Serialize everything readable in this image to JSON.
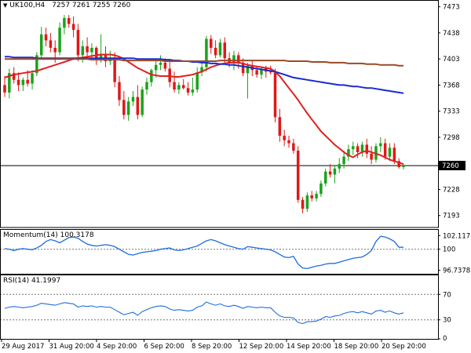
{
  "header": {
    "symbol": "UK100,H4",
    "ohlc": "7257 7261 7255 7260",
    "momentum_title": "Momentum(14) 100.3178",
    "rsi_title": "RSI(14) 41.1997"
  },
  "current_price_label": "7260",
  "chart_data": [
    {
      "type": "candlestick",
      "title": "UK100,H4 7257 7261 7255 7260",
      "ylim": [
        7178,
        7480
      ],
      "y_ticks": [
        "7473",
        "7438",
        "7403",
        "7368",
        "7333",
        "7298",
        "7260",
        "7228",
        "7193"
      ],
      "current_price": 7260,
      "x_labels": [
        "29 Aug 2017",
        "31 Aug 20:00",
        "4 Sep 20:00",
        "6 Sep 20:00",
        "8 Sep 20:00",
        "12 Sep 20:00",
        "14 Sep 20:00",
        "18 Sep 20:00",
        "20 Sep 20:00"
      ],
      "candles": [
        [
          7368,
          7380,
          7352,
          7358
        ],
        [
          7358,
          7390,
          7350,
          7384
        ],
        [
          7384,
          7392,
          7370,
          7375
        ],
        [
          7375,
          7385,
          7360,
          7368
        ],
        [
          7368,
          7378,
          7360,
          7375
        ],
        [
          7375,
          7388,
          7366,
          7370
        ],
        [
          7370,
          7388,
          7362,
          7384
        ],
        [
          7384,
          7412,
          7380,
          7408
        ],
        [
          7408,
          7446,
          7402,
          7436
        ],
        [
          7436,
          7445,
          7420,
          7428
        ],
        [
          7428,
          7438,
          7412,
          7418
        ],
        [
          7418,
          7428,
          7398,
          7412
        ],
        [
          7412,
          7452,
          7408,
          7445
        ],
        [
          7445,
          7462,
          7436,
          7458
        ],
        [
          7458,
          7462,
          7445,
          7450
        ],
        [
          7450,
          7460,
          7432,
          7442
        ],
        [
          7442,
          7450,
          7400,
          7408
        ],
        [
          7408,
          7428,
          7398,
          7420
        ],
        [
          7420,
          7432,
          7404,
          7412
        ],
        [
          7412,
          7424,
          7402,
          7418
        ],
        [
          7418,
          7420,
          7395,
          7402
        ],
        [
          7402,
          7436,
          7398,
          7410
        ],
        [
          7410,
          7420,
          7392,
          7400
        ],
        [
          7400,
          7414,
          7395,
          7405
        ],
        [
          7405,
          7412,
          7365,
          7372
        ],
        [
          7372,
          7380,
          7340,
          7348
        ],
        [
          7348,
          7360,
          7322,
          7328
        ],
        [
          7328,
          7352,
          7320,
          7346
        ],
        [
          7346,
          7360,
          7340,
          7352
        ],
        [
          7352,
          7368,
          7322,
          7328
        ],
        [
          7328,
          7366,
          7325,
          7362
        ],
        [
          7362,
          7378,
          7355,
          7372
        ],
        [
          7372,
          7390,
          7366,
          7388
        ],
        [
          7388,
          7402,
          7378,
          7395
        ],
        [
          7395,
          7408,
          7388,
          7398
        ],
        [
          7398,
          7404,
          7386,
          7390
        ],
        [
          7390,
          7400,
          7365,
          7372
        ],
        [
          7372,
          7386,
          7358,
          7362
        ],
        [
          7362,
          7372,
          7356,
          7368
        ],
        [
          7368,
          7376,
          7362,
          7364
        ],
        [
          7364,
          7372,
          7354,
          7358
        ],
        [
          7358,
          7378,
          7354,
          7362
        ],
        [
          7362,
          7392,
          7358,
          7385
        ],
        [
          7385,
          7398,
          7380,
          7392
        ],
        [
          7392,
          7434,
          7386,
          7430
        ],
        [
          7430,
          7435,
          7410,
          7418
        ],
        [
          7418,
          7428,
          7404,
          7408
        ],
        [
          7408,
          7430,
          7405,
          7425
        ],
        [
          7425,
          7432,
          7398,
          7404
        ],
        [
          7404,
          7412,
          7392,
          7398
        ],
        [
          7398,
          7414,
          7388,
          7408
        ],
        [
          7408,
          7412,
          7390,
          7398
        ],
        [
          7398,
          7404,
          7380,
          7384
        ],
        [
          7384,
          7398,
          7350,
          7394
        ],
        [
          7394,
          7402,
          7380,
          7388
        ],
        [
          7388,
          7394,
          7378,
          7382
        ],
        [
          7382,
          7392,
          7376,
          7390
        ],
        [
          7390,
          7394,
          7378,
          7386
        ],
        [
          7386,
          7394,
          7382,
          7385
        ],
        [
          7385,
          7390,
          7318,
          7325
        ],
        [
          7325,
          7336,
          7292,
          7300
        ],
        [
          7300,
          7308,
          7286,
          7294
        ],
        [
          7294,
          7300,
          7284,
          7290
        ],
        [
          7290,
          7296,
          7276,
          7280
        ],
        [
          7280,
          7286,
          7210,
          7214
        ],
        [
          7214,
          7218,
          7196,
          7202
        ],
        [
          7202,
          7224,
          7198,
          7220
        ],
        [
          7220,
          7226,
          7212,
          7216
        ],
        [
          7216,
          7226,
          7212,
          7222
        ],
        [
          7222,
          7240,
          7218,
          7236
        ],
        [
          7236,
          7256,
          7232,
          7252
        ],
        [
          7252,
          7262,
          7244,
          7248
        ],
        [
          7248,
          7260,
          7236,
          7256
        ],
        [
          7256,
          7270,
          7250,
          7262
        ],
        [
          7262,
          7280,
          7256,
          7272
        ],
        [
          7272,
          7288,
          7266,
          7282
        ],
        [
          7282,
          7292,
          7274,
          7286
        ],
        [
          7286,
          7290,
          7270,
          7278
        ],
        [
          7278,
          7292,
          7272,
          7288
        ],
        [
          7288,
          7296,
          7270,
          7276
        ],
        [
          7276,
          7286,
          7262,
          7268
        ],
        [
          7268,
          7290,
          7264,
          7286
        ],
        [
          7286,
          7298,
          7278,
          7290
        ],
        [
          7290,
          7296,
          7268,
          7272
        ],
        [
          7272,
          7290,
          7266,
          7284
        ],
        [
          7284,
          7290,
          7262,
          7266
        ],
        [
          7266,
          7270,
          7256,
          7258
        ],
        [
          7258,
          7262,
          7255,
          7260
        ]
      ],
      "series": [
        {
          "color": "#e02020",
          "values": [
            7378,
            7380,
            7382,
            7383,
            7384,
            7385,
            7386,
            7387,
            7389,
            7391,
            7393,
            7395,
            7397,
            7399,
            7401,
            7403,
            7404,
            7405,
            7406,
            7407,
            7408,
            7409,
            7409,
            7409,
            7408,
            7406,
            7403,
            7399,
            7395,
            7391,
            7388,
            7385,
            7382,
            7381,
            7380,
            7380,
            7380,
            7379,
            7379,
            7380,
            7381,
            7382,
            7384,
            7386,
            7389,
            7392,
            7394,
            7396,
            7397,
            7398,
            7398,
            7398,
            7397,
            7395,
            7394,
            7393,
            7392,
            7391,
            7390,
            7386,
            7380,
            7372,
            7364,
            7356,
            7348,
            7339,
            7330,
            7322,
            7314,
            7306,
            7300,
            7294,
            7288,
            7283,
            7278,
            7274,
            7271,
            7275,
            7278,
            7280,
            7278,
            7276,
            7274,
            7271,
            7268,
            7266,
            7264,
            7262
          ]
        },
        {
          "color": "#1a2bd0",
          "values": [
            7406,
            7406,
            7405,
            7405,
            7405,
            7405,
            7405,
            7404,
            7404,
            7404,
            7404,
            7404,
            7404,
            7404,
            7404,
            7404,
            7404,
            7404,
            7404,
            7404,
            7404,
            7404,
            7404,
            7404,
            7404,
            7404,
            7404,
            7404,
            7404,
            7403,
            7403,
            7403,
            7403,
            7403,
            7403,
            7402,
            7402,
            7401,
            7401,
            7400,
            7400,
            7399,
            7399,
            7398,
            7398,
            7397,
            7397,
            7396,
            7396,
            7395,
            7395,
            7394,
            7393,
            7392,
            7391,
            7390,
            7389,
            7388,
            7387,
            7386,
            7384,
            7382,
            7380,
            7378,
            7377,
            7376,
            7375,
            7374,
            7373,
            7372,
            7371,
            7370,
            7369,
            7368,
            7368,
            7367,
            7366,
            7366,
            7365,
            7364,
            7364,
            7363,
            7362,
            7361,
            7360,
            7359,
            7358,
            7357
          ]
        },
        {
          "color": "#9a4a28",
          "values": [
            7403,
            7403,
            7403,
            7403,
            7403,
            7403,
            7403,
            7403,
            7403,
            7403,
            7403,
            7403,
            7403,
            7403,
            7403,
            7403,
            7403,
            7403,
            7403,
            7402,
            7402,
            7402,
            7402,
            7402,
            7402,
            7402,
            7401,
            7401,
            7401,
            7401,
            7401,
            7401,
            7401,
            7401,
            7401,
            7400,
            7400,
            7400,
            7400,
            7400,
            7400,
            7400,
            7400,
            7400,
            7400,
            7400,
            7400,
            7401,
            7401,
            7401,
            7401,
            7401,
            7401,
            7401,
            7401,
            7401,
            7401,
            7401,
            7401,
            7401,
            7401,
            7401,
            7400,
            7400,
            7400,
            7400,
            7400,
            7399,
            7399,
            7399,
            7399,
            7398,
            7398,
            7398,
            7398,
            7397,
            7397,
            7397,
            7397,
            7396,
            7396,
            7396,
            7395,
            7395,
            7395,
            7395,
            7394,
            7394
          ]
        }
      ]
    },
    {
      "type": "line",
      "title": "Momentum(14) 100.3178",
      "y_ticks": [
        "102.1171",
        "100",
        "96.7378"
      ],
      "ylim": [
        96.2,
        103.0
      ],
      "reference_level": 100,
      "series": [
        {
          "color": "#1e6fd9",
          "values": [
            100.1,
            100.0,
            99.8,
            100.0,
            100.1,
            100.0,
            99.9,
            100.2,
            100.6,
            101.2,
            101.5,
            101.3,
            101.0,
            101.4,
            101.8,
            101.9,
            101.7,
            101.2,
            100.8,
            100.6,
            100.5,
            100.6,
            100.7,
            100.6,
            100.4,
            100.0,
            99.6,
            99.2,
            99.1,
            99.3,
            99.5,
            99.6,
            99.7,
            99.8,
            100.0,
            100.1,
            100.2,
            99.9,
            99.8,
            99.9,
            100.1,
            100.3,
            100.5,
            100.9,
            101.3,
            101.5,
            101.3,
            101.0,
            100.7,
            100.5,
            100.3,
            100.1,
            100.0,
            100.4,
            100.3,
            100.2,
            100.1,
            100.0,
            99.9,
            99.6,
            99.2,
            98.8,
            98.7,
            98.9,
            97.7,
            97.1,
            97.0,
            97.2,
            97.4,
            97.5,
            97.7,
            97.8,
            97.8,
            98.0,
            98.2,
            98.4,
            98.6,
            98.7,
            98.8,
            99.2,
            99.8,
            101.2,
            102.0,
            101.9,
            101.6,
            101.2,
            100.3,
            100.3
          ]
        }
      ]
    },
    {
      "type": "line",
      "title": "RSI(14) 41.1997",
      "y_ticks": [
        "70",
        "30",
        "0"
      ],
      "ylim": [
        0,
        100
      ],
      "levels": [
        70,
        30
      ],
      "series": [
        {
          "color": "#1e6fd9",
          "values": [
            48,
            50,
            51,
            50,
            49,
            50,
            51,
            53,
            56,
            55,
            54,
            53,
            55,
            57,
            56,
            55,
            50,
            52,
            51,
            52,
            50,
            51,
            50,
            50,
            46,
            42,
            38,
            40,
            42,
            37,
            43,
            46,
            49,
            51,
            52,
            51,
            47,
            45,
            46,
            45,
            44,
            45,
            50,
            52,
            58,
            55,
            53,
            55,
            52,
            51,
            53,
            51,
            48,
            51,
            50,
            49,
            50,
            49,
            49,
            42,
            36,
            34,
            34,
            33,
            26,
            24,
            27,
            27,
            28,
            31,
            35,
            34,
            36,
            37,
            40,
            42,
            43,
            41,
            43,
            41,
            39,
            44,
            45,
            42,
            44,
            41,
            39,
            41
          ]
        }
      ]
    }
  ]
}
